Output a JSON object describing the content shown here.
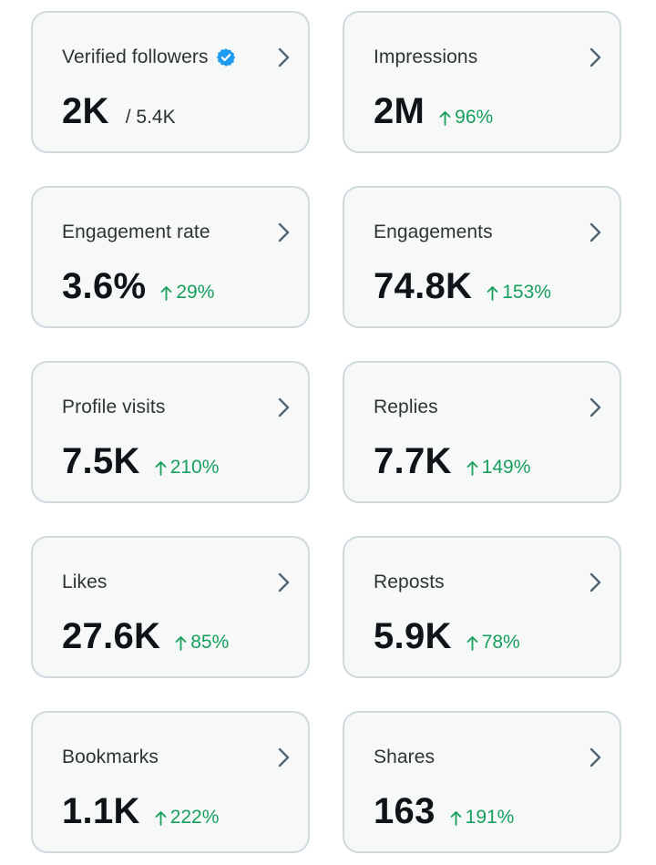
{
  "colors": {
    "card_bg": "#f7f9f9",
    "card_border": "#cfd9de",
    "positive": "#17a05d",
    "verified": "#1d9bf0",
    "chevron": "#536471"
  },
  "cards": [
    {
      "label": "Verified followers",
      "value": "2K",
      "sub": "/ 5.4K",
      "verified": true
    },
    {
      "label": "Impressions",
      "value": "2M",
      "change": "96%"
    },
    {
      "label": "Engagement rate",
      "value": "3.6%",
      "change": "29%"
    },
    {
      "label": "Engagements",
      "value": "74.8K",
      "change": "153%"
    },
    {
      "label": "Profile visits",
      "value": "7.5K",
      "change": "210%"
    },
    {
      "label": "Replies",
      "value": "7.7K",
      "change": "149%"
    },
    {
      "label": "Likes",
      "value": "27.6K",
      "change": "85%"
    },
    {
      "label": "Reposts",
      "value": "5.9K",
      "change": "78%"
    },
    {
      "label": "Bookmarks",
      "value": "1.1K",
      "change": "222%"
    },
    {
      "label": "Shares",
      "value": "163",
      "change": "191%"
    }
  ],
  "icons": {
    "verified": "verified-badge-icon",
    "chevron": "chevron-right-icon",
    "arrow": "arrow-up-icon"
  }
}
